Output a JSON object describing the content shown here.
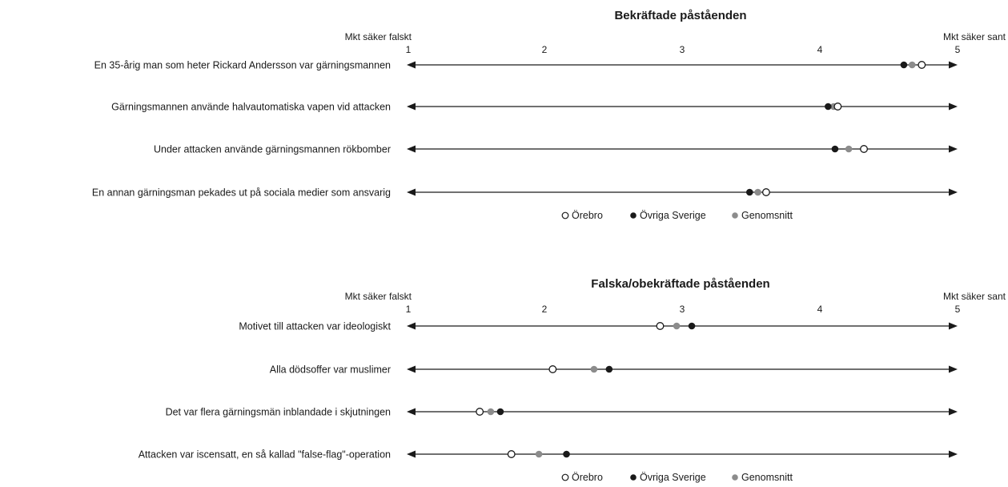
{
  "chart_data": [
    {
      "type": "scatter",
      "title": "Bekräftade påståenden",
      "scale_left_label": "Mkt säker falskt",
      "scale_right_label": "Mkt säker sant",
      "xlim": [
        1,
        5
      ],
      "ticks": [
        "1",
        "2",
        "3",
        "4",
        "5"
      ],
      "categories": [
        "En 35-årig man som heter Rickard Andersson var gärningsmannen",
        "Gärningsmannen använde halvautomatiska vapen vid attacken",
        "Under attacken använde gärningsmannen rökbomber",
        "En annan gärningsman pekades ut på sociala medier som ansvarig"
      ],
      "series": [
        {
          "name": "Örebro",
          "values": [
            4.74,
            4.13,
            4.32,
            3.61
          ]
        },
        {
          "name": "Övriga Sverige",
          "values": [
            4.61,
            4.06,
            4.11,
            3.49
          ]
        },
        {
          "name": "Genomsnitt",
          "values": [
            4.67,
            4.1,
            4.21,
            3.55
          ]
        }
      ],
      "legend": "bottom"
    },
    {
      "type": "scatter",
      "title": "Falska/obekräftade påståenden",
      "scale_left_label": "Mkt säker falskt",
      "scale_right_label": "Mkt säker sant",
      "xlim": [
        1,
        5
      ],
      "ticks": [
        "1",
        "2",
        "3",
        "4",
        "5"
      ],
      "categories": [
        "Motivet till attacken var ideologiskt",
        "Alla dödsoffer var muslimer",
        "Det var flera gärningsmän inblandade i skjutningen",
        "Attacken var iscensatt, en så kallad \"false-flag\"-operation"
      ],
      "series": [
        {
          "name": "Örebro",
          "values": [
            2.84,
            2.06,
            1.53,
            1.76
          ]
        },
        {
          "name": "Övriga Sverige",
          "values": [
            3.07,
            2.47,
            1.68,
            2.16
          ]
        },
        {
          "name": "Genomsnitt",
          "values": [
            2.96,
            2.36,
            1.61,
            1.96
          ]
        }
      ],
      "legend": "bottom"
    }
  ],
  "legend_labels": [
    "Örebro",
    "Övriga Sverige",
    "Genomsnitt"
  ],
  "colors": {
    "orebro_fill": "#ffffff",
    "orebro_stroke": "#1a1a1a",
    "ovriga": "#1a1a1a",
    "genomsnitt": "#8c8c8c",
    "axis": "#1a1a1a"
  }
}
